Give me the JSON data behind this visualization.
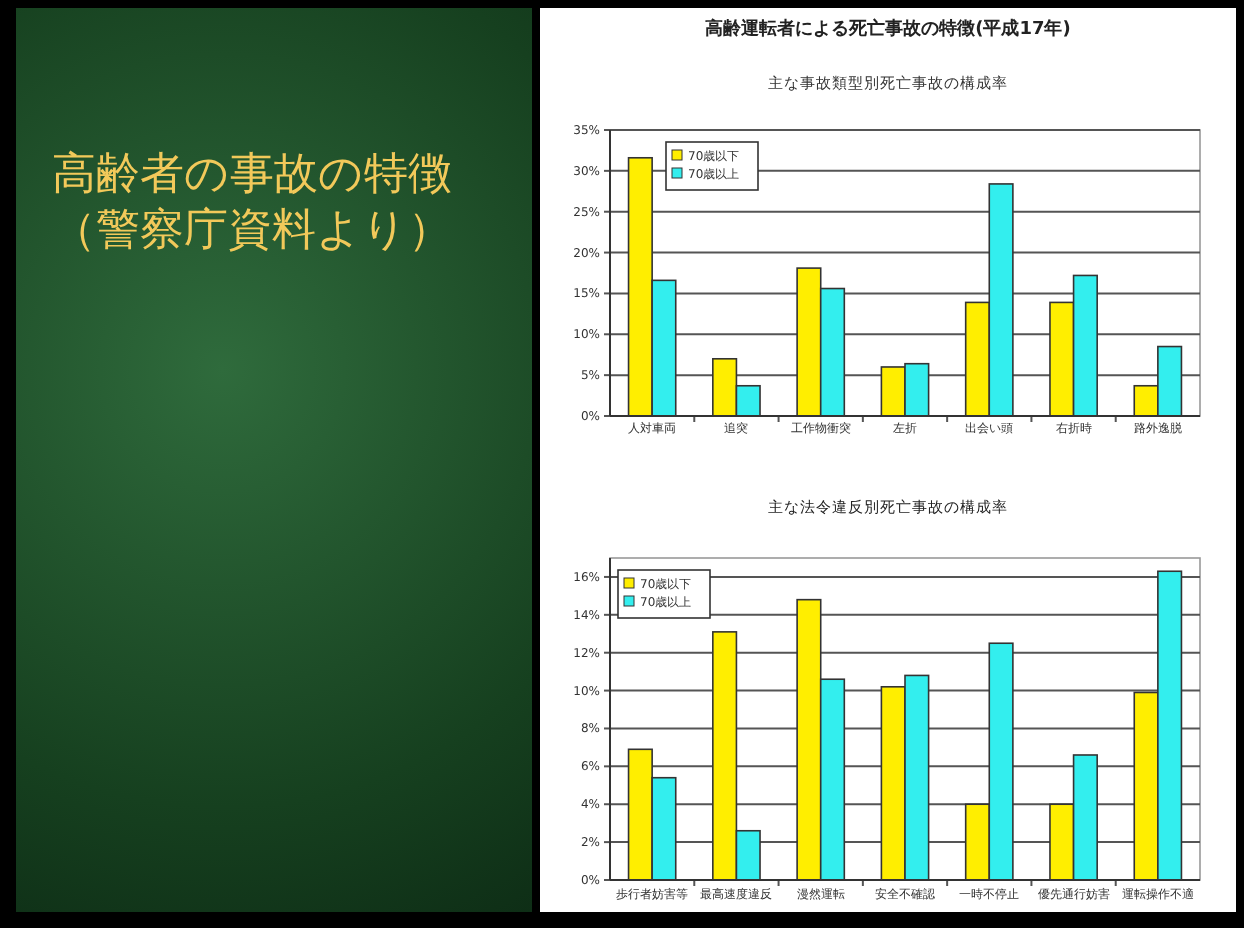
{
  "chart_data": [
    {
      "type": "bar",
      "title": "高齢運転者による死亡事故の特徴(平成17年)",
      "subtitle": "主な事故類型別死亡事故の構成率",
      "annotations": [
        "高齢者の事故の特徴（警察庁資料より）"
      ],
      "categories": [
        "人対車両",
        "追突",
        "工作物衝突",
        "左折",
        "出会い頭",
        "右折時",
        "路外逸脱"
      ],
      "series": [
        {
          "name": "70歳以下",
          "color": "#ffee00",
          "values": [
            31.6,
            7.0,
            18.1,
            6.0,
            13.9,
            13.9,
            3.7
          ]
        },
        {
          "name": "70歳以上",
          "color": "#33eeee",
          "values": [
            16.6,
            3.7,
            15.6,
            6.4,
            28.4,
            17.2,
            8.5
          ]
        }
      ],
      "ylim": [
        0,
        35
      ],
      "yticks": [
        {
          "value": 0,
          "label": "0%"
        },
        {
          "value": 5,
          "label": "5%"
        },
        {
          "value": 10,
          "label": "10%"
        },
        {
          "value": 15,
          "label": "15%"
        },
        {
          "value": 20,
          "label": "20%"
        },
        {
          "value": 25,
          "label": "25%"
        },
        {
          "value": 30,
          "label": "30%"
        },
        {
          "value": 35,
          "label": "35%"
        }
      ],
      "grid": "y",
      "legend": "top left"
    },
    {
      "type": "bar",
      "title": "主な法令違反別死亡事故の構成率",
      "categories": [
        "歩行者妨害等",
        "最高速度違反",
        "漫然運転",
        "安全不確認",
        "一時不停止",
        "優先通行妨害",
        "運転操作不適"
      ],
      "series": [
        {
          "name": "70歳以下",
          "color": "#ffee00",
          "values": [
            6.9,
            13.1,
            14.8,
            10.2,
            4.0,
            4.0,
            9.9
          ]
        },
        {
          "name": "70歳以上",
          "color": "#33eeee",
          "values": [
            5.4,
            2.6,
            10.6,
            10.8,
            12.5,
            6.6,
            16.3
          ]
        }
      ],
      "ylim": [
        0,
        17
      ],
      "yticks": [
        {
          "value": 0,
          "label": "0%"
        },
        {
          "value": 2,
          "label": "2%"
        },
        {
          "value": 4,
          "label": "4%"
        },
        {
          "value": 6,
          "label": "6%"
        },
        {
          "value": 8,
          "label": "8%"
        },
        {
          "value": 10,
          "label": "10%"
        },
        {
          "value": 12,
          "label": "12%"
        },
        {
          "value": 14,
          "label": "14%"
        },
        {
          "value": 16,
          "label": "16%"
        }
      ],
      "grid": "y",
      "legend": "top left"
    }
  ]
}
